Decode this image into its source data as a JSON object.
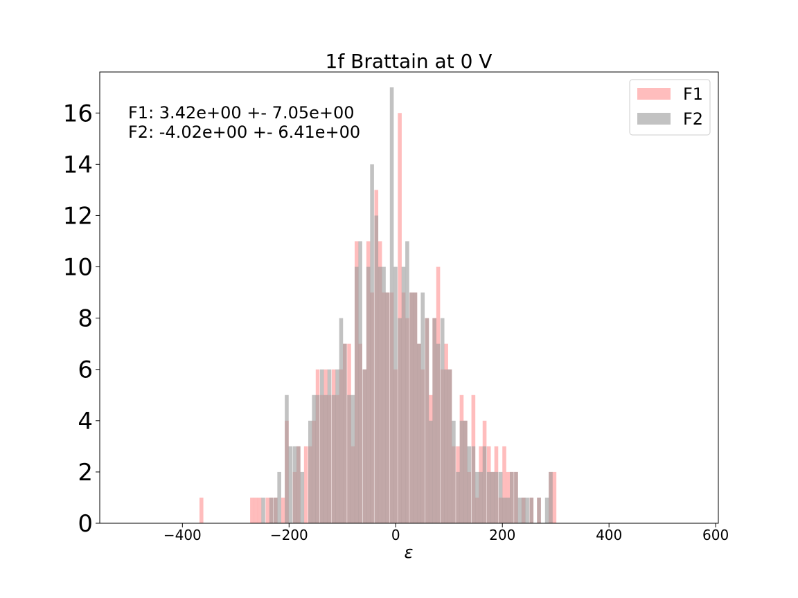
{
  "chart_data": {
    "type": "bar",
    "title": "1f Brattain at 0 V",
    "xlabel": "ε",
    "ylabel": "",
    "xlim": [
      -555,
      605
    ],
    "ylim": [
      0,
      17.6
    ],
    "bin_width": 7.27,
    "x_ticks": [
      -400,
      -200,
      0,
      200,
      400,
      600
    ],
    "x_tick_labels": [
      "−400",
      "−200",
      "0",
      "200",
      "400",
      "600"
    ],
    "y_ticks": [
      0,
      2,
      4,
      6,
      8,
      10,
      12,
      14,
      16
    ],
    "y_tick_labels": [
      "0",
      "2",
      "4",
      "6",
      "8",
      "10",
      "12",
      "14",
      "16"
    ],
    "legend_position": "top-right",
    "grid": false,
    "annotations": [
      "F1: 3.42e+00 +- 7.05e+00",
      "F2: -4.02e+00 +- 6.41e+00"
    ],
    "series": [
      {
        "name": "F1",
        "color": "#ff9999",
        "opacity": 0.65,
        "bins": [
          [
            -368,
            1
          ],
          [
            -273,
            1
          ],
          [
            -266,
            1
          ],
          [
            -259,
            1
          ],
          [
            -244,
            1
          ],
          [
            -237,
            1
          ],
          [
            -229,
            1
          ],
          [
            -215,
            1
          ],
          [
            -208,
            4
          ],
          [
            -193,
            2
          ],
          [
            -186,
            3
          ],
          [
            -172,
            3
          ],
          [
            -164,
            3
          ],
          [
            -157,
            4
          ],
          [
            -150,
            6
          ],
          [
            -142,
            5
          ],
          [
            -135,
            6
          ],
          [
            -128,
            5
          ],
          [
            -120,
            6
          ],
          [
            -113,
            5
          ],
          [
            -106,
            6
          ],
          [
            -99,
            7
          ],
          [
            -91,
            7
          ],
          [
            -84,
            3
          ],
          [
            -77,
            11
          ],
          [
            -70,
            7
          ],
          [
            -62,
            6
          ],
          [
            -55,
            11
          ],
          [
            -48,
            9
          ],
          [
            -40,
            13
          ],
          [
            -33,
            11
          ],
          [
            -26,
            9
          ],
          [
            -19,
            9
          ],
          [
            -11,
            9
          ],
          [
            -4,
            6
          ],
          [
            4,
            16
          ],
          [
            11,
            9
          ],
          [
            18,
            8
          ],
          [
            26,
            9
          ],
          [
            33,
            9
          ],
          [
            40,
            7
          ],
          [
            47,
            6
          ],
          [
            55,
            8
          ],
          [
            62,
            5
          ],
          [
            69,
            8
          ],
          [
            76,
            10
          ],
          [
            84,
            6
          ],
          [
            91,
            7
          ],
          [
            98,
            6
          ],
          [
            105,
            3
          ],
          [
            113,
            3
          ],
          [
            120,
            5
          ],
          [
            127,
            4
          ],
          [
            134,
            2
          ],
          [
            142,
            5
          ],
          [
            149,
            1
          ],
          [
            156,
            3
          ],
          [
            163,
            4
          ],
          [
            171,
            3
          ],
          [
            178,
            2
          ],
          [
            185,
            3
          ],
          [
            193,
            1
          ],
          [
            200,
            3
          ],
          [
            207,
            2
          ],
          [
            214,
            2
          ],
          [
            222,
            2
          ],
          [
            236,
            1
          ],
          [
            251,
            1
          ],
          [
            265,
            1
          ],
          [
            287,
            2
          ],
          [
            294,
            2
          ]
        ]
      },
      {
        "name": "F2",
        "color": "#999999",
        "opacity": 0.6,
        "bins": [
          [
            -252,
            1
          ],
          [
            -237,
            1
          ],
          [
            -229,
            1
          ],
          [
            -222,
            2
          ],
          [
            -208,
            5
          ],
          [
            -201,
            3
          ],
          [
            -193,
            3
          ],
          [
            -186,
            3
          ],
          [
            -179,
            2
          ],
          [
            -164,
            4
          ],
          [
            -157,
            5
          ],
          [
            -150,
            5
          ],
          [
            -142,
            6
          ],
          [
            -135,
            5
          ],
          [
            -128,
            6
          ],
          [
            -120,
            5
          ],
          [
            -113,
            6
          ],
          [
            -106,
            8
          ],
          [
            -99,
            7
          ],
          [
            -91,
            5
          ],
          [
            -84,
            5
          ],
          [
            -77,
            10
          ],
          [
            -70,
            11
          ],
          [
            -62,
            6
          ],
          [
            -55,
            10
          ],
          [
            -48,
            14
          ],
          [
            -40,
            12
          ],
          [
            -33,
            10
          ],
          [
            -26,
            10
          ],
          [
            -19,
            9
          ],
          [
            -11,
            17
          ],
          [
            -4,
            10
          ],
          [
            4,
            8
          ],
          [
            11,
            10
          ],
          [
            18,
            11
          ],
          [
            26,
            9
          ],
          [
            33,
            9
          ],
          [
            40,
            7
          ],
          [
            47,
            9
          ],
          [
            55,
            8
          ],
          [
            62,
            4
          ],
          [
            69,
            8
          ],
          [
            76,
            7
          ],
          [
            84,
            8
          ],
          [
            91,
            6
          ],
          [
            98,
            6
          ],
          [
            105,
            4
          ],
          [
            113,
            2
          ],
          [
            120,
            4
          ],
          [
            127,
            4
          ],
          [
            134,
            3
          ],
          [
            142,
            3
          ],
          [
            149,
            2
          ],
          [
            156,
            2
          ],
          [
            163,
            3
          ],
          [
            171,
            2
          ],
          [
            178,
            2
          ],
          [
            185,
            2
          ],
          [
            193,
            2
          ],
          [
            200,
            1
          ],
          [
            207,
            1
          ],
          [
            214,
            2
          ],
          [
            222,
            2
          ],
          [
            229,
            1
          ],
          [
            236,
            1
          ],
          [
            243,
            1
          ],
          [
            251,
            1
          ],
          [
            265,
            1
          ],
          [
            280,
            1
          ],
          [
            287,
            2
          ]
        ]
      }
    ]
  }
}
